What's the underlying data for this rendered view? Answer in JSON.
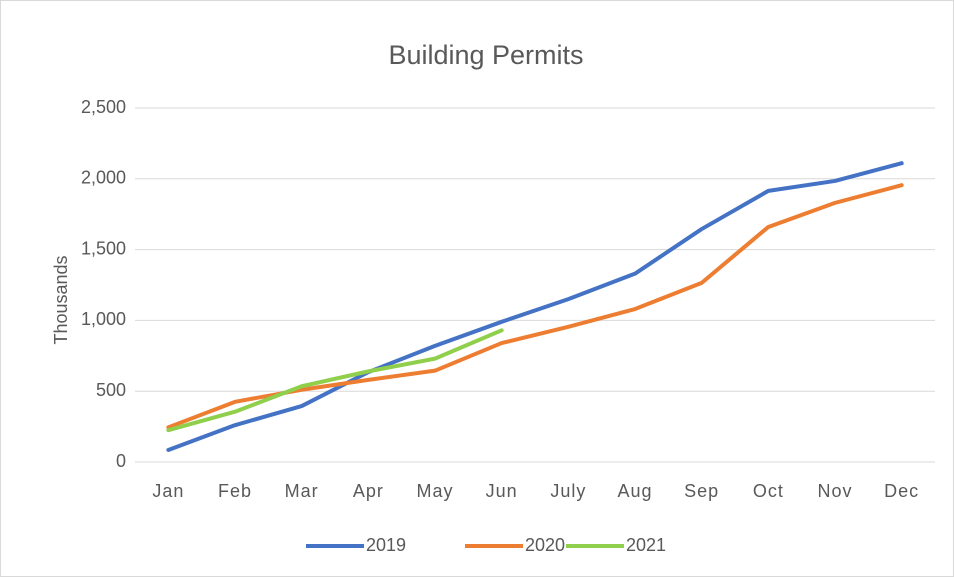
{
  "chart_data": {
    "type": "line",
    "title": "Building Permits",
    "y_label": "Thousands",
    "categories": [
      "Jan",
      "Feb",
      "Mar",
      "Apr",
      "May",
      "Jun",
      "July",
      "Aug",
      "Sep",
      "Oct",
      "Nov",
      "Dec"
    ],
    "series": [
      {
        "name": "2019",
        "color": "#4472c4",
        "values": [
          85,
          260,
          395,
          635,
          820,
          990,
          1150,
          1330,
          1645,
          1915,
          1985,
          2110
        ]
      },
      {
        "name": "2020",
        "color": "#ed7d31",
        "values": [
          245,
          425,
          510,
          580,
          645,
          840,
          955,
          1080,
          1265,
          1660,
          1830,
          1955
        ]
      },
      {
        "name": "2021",
        "color": "#8fcf4b",
        "values": [
          225,
          355,
          535,
          640,
          730,
          930,
          null,
          null,
          null,
          null,
          null,
          null
        ]
      }
    ],
    "ylim": [
      0,
      2500
    ],
    "yticks": [
      0,
      500,
      {
        "value": 1000,
        "label": "1,000"
      },
      {
        "value": 1500,
        "label": "1,500"
      },
      {
        "value": 2000,
        "label": "2,000"
      },
      {
        "value": 2500,
        "label": "2,500"
      }
    ],
    "grid": true,
    "legend": "bottom"
  }
}
